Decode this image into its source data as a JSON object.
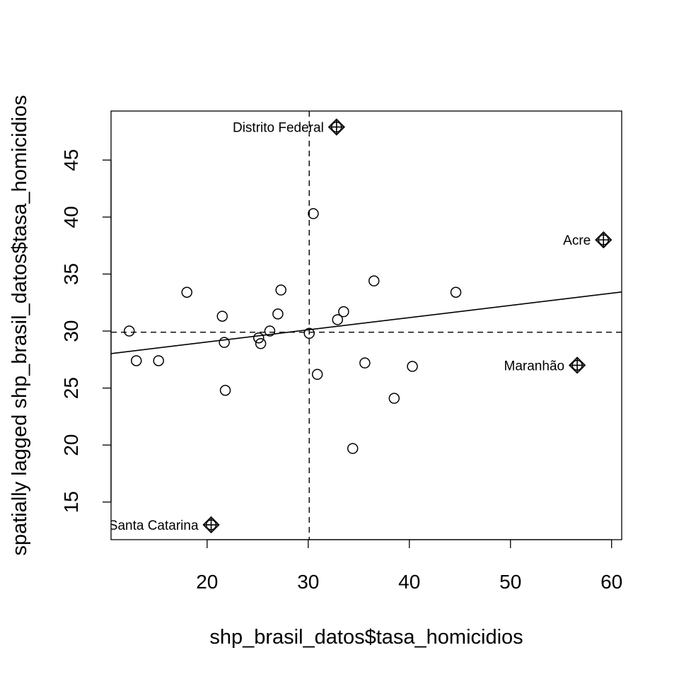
{
  "chart_data": {
    "type": "scatter",
    "xlabel": "shp_brasil_datos$tasa_homicidios",
    "ylabel": "spatially lagged shp_brasil_datos$tasa_homicidios",
    "xlim": [
      10.5,
      61.0
    ],
    "ylim": [
      11.7,
      49.3
    ],
    "x_ticks": [
      20,
      30,
      40,
      50,
      60
    ],
    "y_ticks": [
      15,
      20,
      25,
      30,
      35,
      40,
      45
    ],
    "mean_x": 30.1,
    "mean_y": 29.9,
    "regression": {
      "intercept": 26.9,
      "slope": 0.107
    },
    "points": [
      {
        "x": 12.3,
        "y": 30.0
      },
      {
        "x": 13.0,
        "y": 27.4
      },
      {
        "x": 15.2,
        "y": 27.4
      },
      {
        "x": 18.0,
        "y": 33.4
      },
      {
        "x": 21.5,
        "y": 31.3
      },
      {
        "x": 21.7,
        "y": 29.0
      },
      {
        "x": 21.8,
        "y": 24.8
      },
      {
        "x": 25.1,
        "y": 29.4
      },
      {
        "x": 25.3,
        "y": 28.9
      },
      {
        "x": 26.2,
        "y": 30.0
      },
      {
        "x": 27.0,
        "y": 31.5
      },
      {
        "x": 27.3,
        "y": 33.6
      },
      {
        "x": 30.1,
        "y": 29.8
      },
      {
        "x": 30.5,
        "y": 40.3
      },
      {
        "x": 30.9,
        "y": 26.2
      },
      {
        "x": 32.9,
        "y": 31.0
      },
      {
        "x": 33.5,
        "y": 31.7
      },
      {
        "x": 34.4,
        "y": 19.7
      },
      {
        "x": 35.6,
        "y": 27.2
      },
      {
        "x": 36.5,
        "y": 34.4
      },
      {
        "x": 38.5,
        "y": 24.1
      },
      {
        "x": 40.3,
        "y": 26.9
      },
      {
        "x": 44.6,
        "y": 33.4
      }
    ],
    "influential_points": [
      {
        "x": 32.8,
        "y": 47.9,
        "label": "Distrito Federal"
      },
      {
        "x": 59.2,
        "y": 38.0,
        "label": "Acre"
      },
      {
        "x": 56.6,
        "y": 27.0,
        "label": "Maranhão"
      },
      {
        "x": 20.4,
        "y": 13.0,
        "label": "Santa Catarina"
      }
    ]
  }
}
